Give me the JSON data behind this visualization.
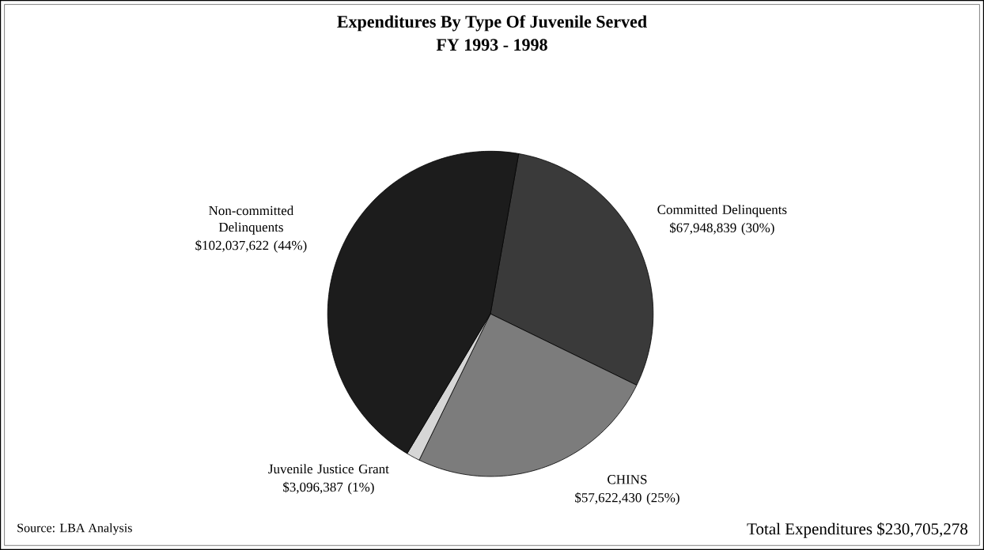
{
  "chart_data": {
    "type": "pie",
    "title": "Expenditures By Type Of Juvenile Served",
    "subtitle": "FY 1993 - 1998",
    "categories": [
      "Committed Delinquents",
      "CHINS",
      "Juvenile Justice Grant",
      "Non-committed Delinquents"
    ],
    "values": [
      67948839,
      57622430,
      3096387,
      102037622
    ],
    "colors": [
      "#3a3a3a",
      "#7c7c7c",
      "#d6d6d6",
      "#1c1c1c"
    ],
    "value_labels": [
      "$67,948,839 (30%)",
      "$57,622,430 (25%)",
      "$3,096,387 (1%)",
      "$102,037,622 (44%)"
    ],
    "annotations": [
      "Source: LBA Analysis",
      "Total Expenditures $230,705,278"
    ]
  }
}
